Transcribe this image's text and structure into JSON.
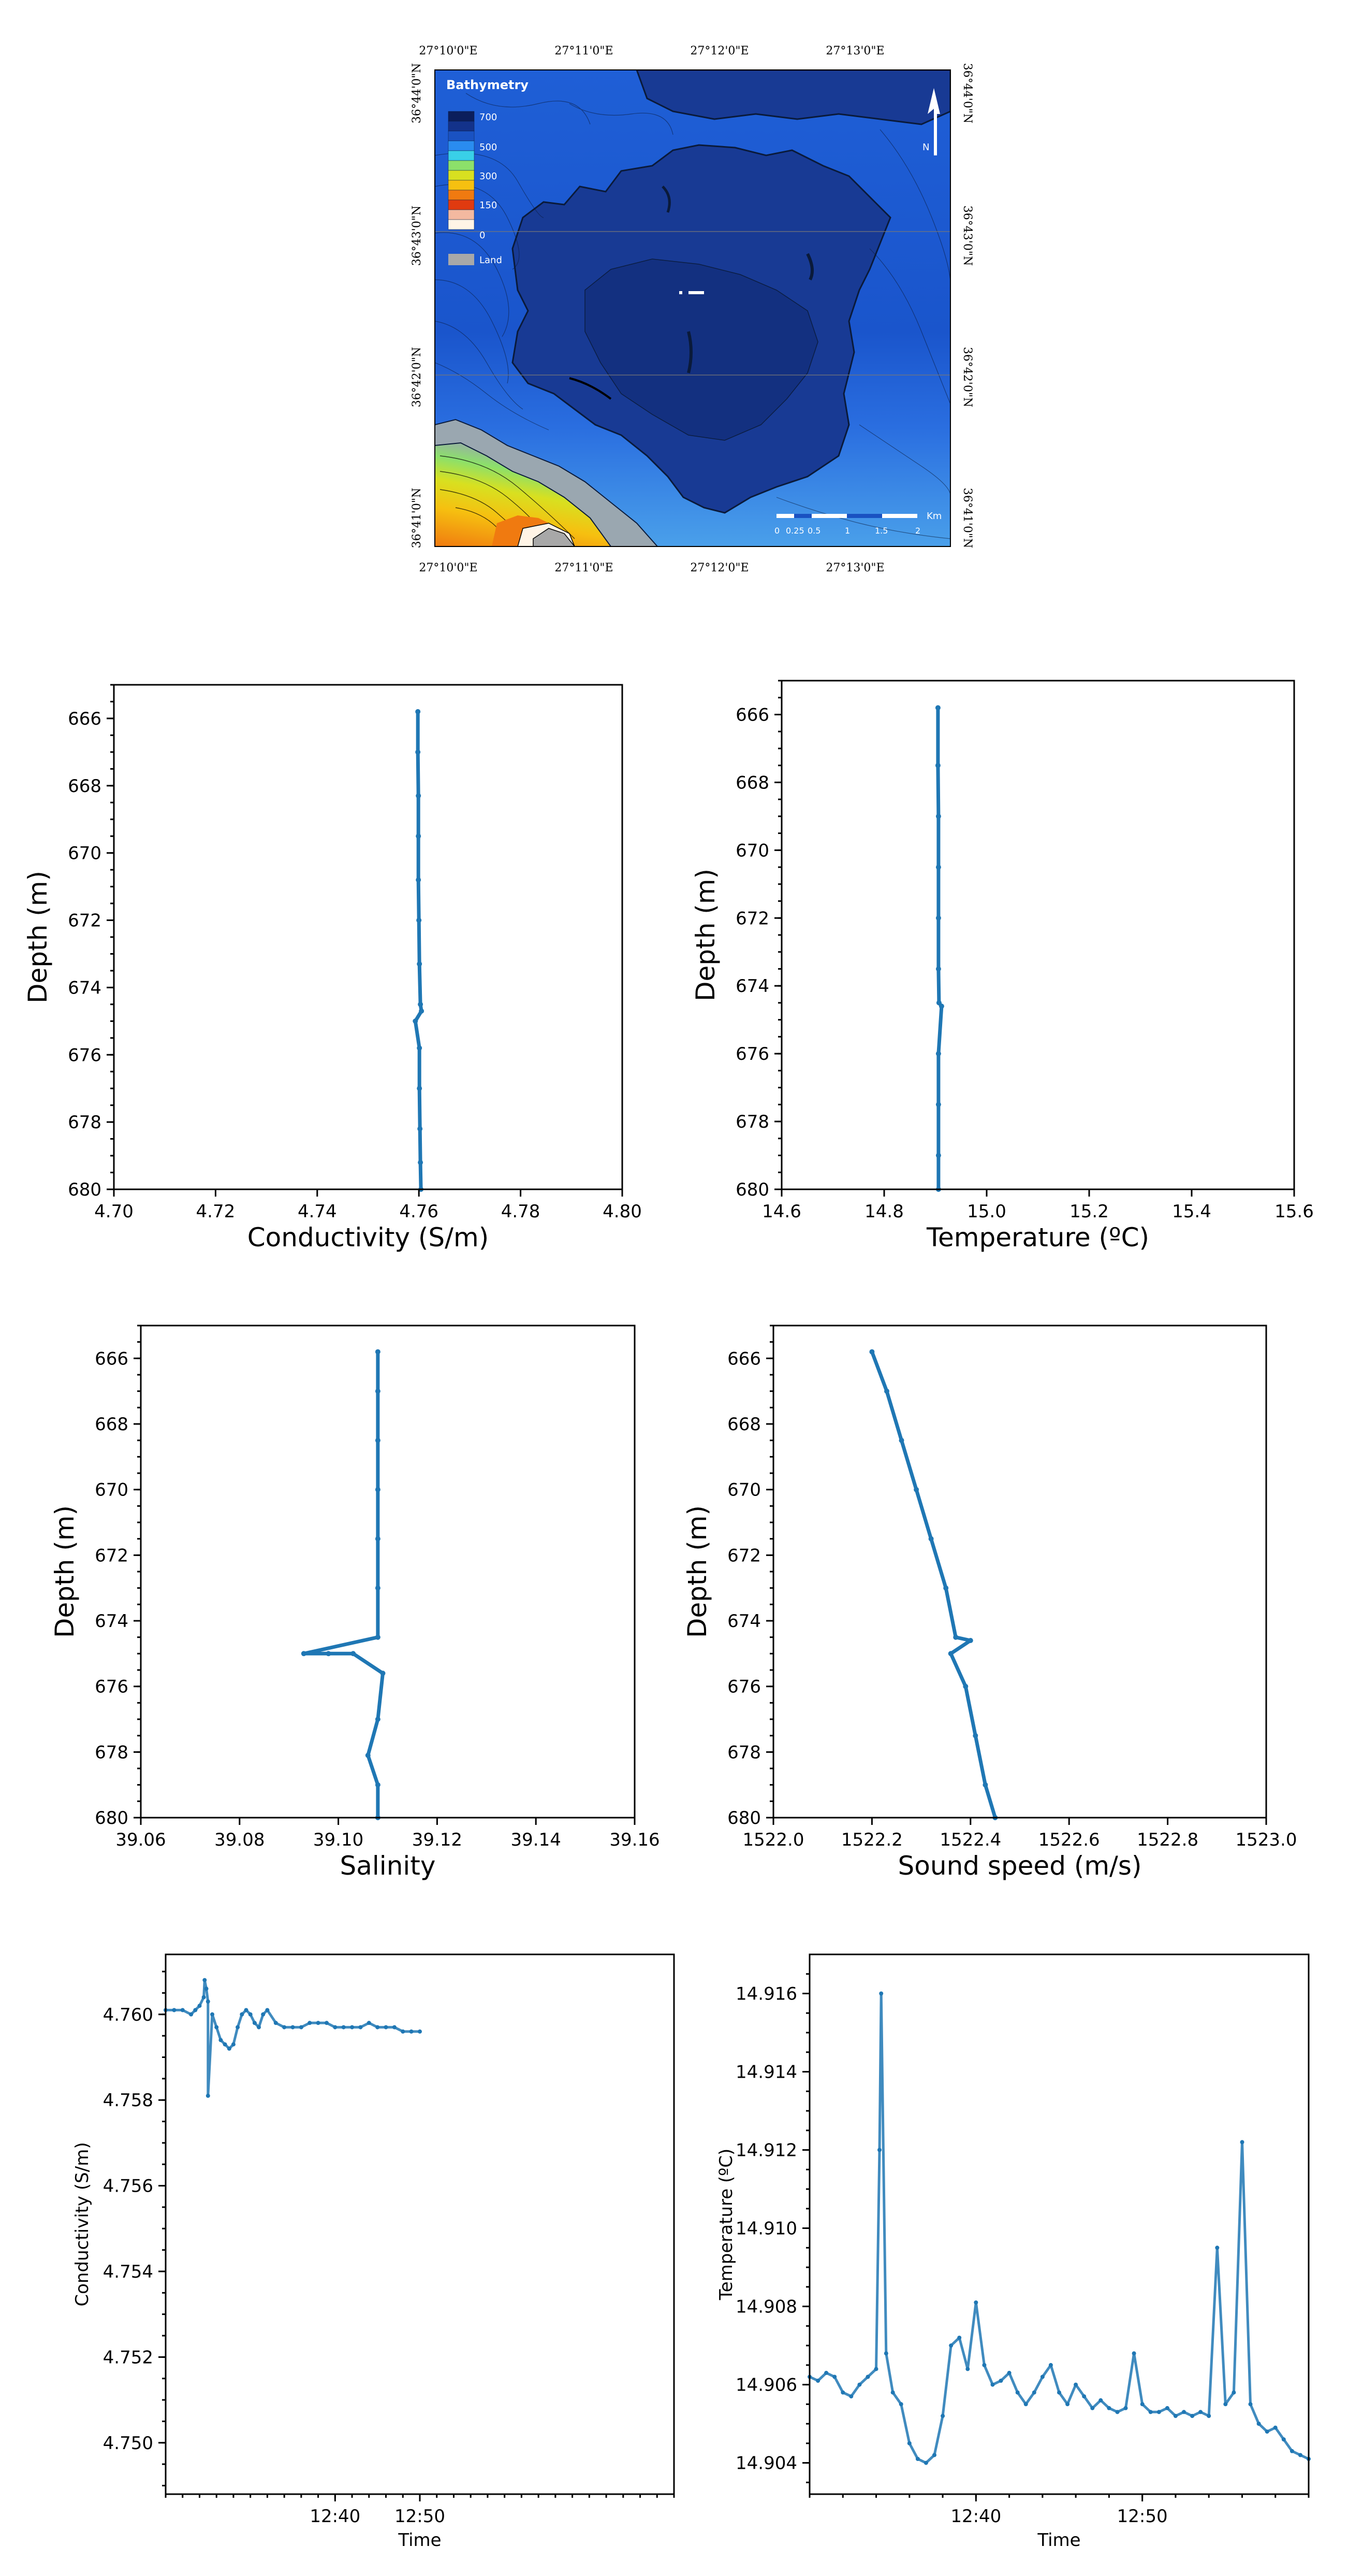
{
  "map": {
    "legend_title": "Bathymetry",
    "legend_values": [
      "700",
      "500",
      "300",
      "150",
      "0"
    ],
    "legend_land": "Land",
    "legend_colors": [
      "#0b1e5c",
      "#13328a",
      "#1a52c2",
      "#2a8cf0",
      "#39d0e8",
      "#8ce06a",
      "#d8e020",
      "#f6c010",
      "#f07a10",
      "#e03a10",
      "#f3b9a0",
      "#fff4e6"
    ],
    "lon_labels": [
      "27°10'0\"E",
      "27°11'0\"E",
      "27°12'0\"E",
      "27°13'0\"E"
    ],
    "lat_labels": [
      "36°44'0\"N",
      "36°43'0\"N",
      "36°42'0\"N",
      "36°41'0\"N"
    ],
    "north_label": "N",
    "scale_unit": "Km",
    "scale_labels": [
      "0",
      "0.25",
      "0.5",
      "1",
      "1.5",
      "2"
    ]
  },
  "chart_data": [
    {
      "id": "conductivity-profile",
      "type": "scatter",
      "xlabel": "Conductivity (S/m)",
      "ylabel": "Depth (m)",
      "xlim": [
        4.7,
        4.8
      ],
      "ylim": [
        680,
        665
      ],
      "xticks": [
        "4.70",
        "4.72",
        "4.74",
        "4.76",
        "4.78",
        "4.80"
      ],
      "yticks": [
        "666",
        "668",
        "670",
        "672",
        "674",
        "676",
        "678",
        "680"
      ],
      "points": [
        [
          4.7598,
          665.8
        ],
        [
          4.7598,
          667.0
        ],
        [
          4.7599,
          668.3
        ],
        [
          4.7599,
          669.5
        ],
        [
          4.7599,
          670.8
        ],
        [
          4.76,
          672.0
        ],
        [
          4.7601,
          673.3
        ],
        [
          4.7603,
          674.5
        ],
        [
          4.7593,
          675.0
        ],
        [
          4.7605,
          674.7
        ],
        [
          4.7601,
          675.8
        ],
        [
          4.7601,
          677.0
        ],
        [
          4.7602,
          678.2
        ],
        [
          4.7603,
          679.2
        ],
        [
          4.7604,
          680.0
        ]
      ]
    },
    {
      "id": "temperature-profile",
      "type": "scatter",
      "xlabel": "Temperature (ºC)",
      "ylabel": "Depth (m)",
      "xlim": [
        14.6,
        15.6
      ],
      "ylim": [
        680,
        665
      ],
      "xticks": [
        "14.6",
        "14.8",
        "15.0",
        "15.2",
        "15.4",
        "15.6"
      ],
      "yticks": [
        "666",
        "668",
        "670",
        "672",
        "674",
        "676",
        "678",
        "680"
      ],
      "points": [
        [
          14.905,
          665.8
        ],
        [
          14.905,
          667.5
        ],
        [
          14.906,
          669.0
        ],
        [
          14.906,
          670.5
        ],
        [
          14.906,
          672.0
        ],
        [
          14.906,
          673.5
        ],
        [
          14.907,
          674.5
        ],
        [
          14.912,
          674.6
        ],
        [
          14.906,
          676.0
        ],
        [
          14.906,
          677.5
        ],
        [
          14.906,
          679.0
        ],
        [
          14.906,
          680.0
        ]
      ]
    },
    {
      "id": "salinity-profile",
      "type": "scatter",
      "xlabel": "Salinity",
      "ylabel": "Depth (m)",
      "xlim": [
        39.06,
        39.16
      ],
      "ylim": [
        680,
        665
      ],
      "xticks": [
        "39.06",
        "39.08",
        "39.10",
        "39.12",
        "39.14",
        "39.16"
      ],
      "yticks": [
        "666",
        "668",
        "670",
        "672",
        "674",
        "676",
        "678",
        "680"
      ],
      "points": [
        [
          39.108,
          665.8
        ],
        [
          39.108,
          667.0
        ],
        [
          39.108,
          668.5
        ],
        [
          39.108,
          670.0
        ],
        [
          39.108,
          671.5
        ],
        [
          39.108,
          673.0
        ],
        [
          39.108,
          674.5
        ],
        [
          39.093,
          675.0
        ],
        [
          39.098,
          675.0
        ],
        [
          39.103,
          675.0
        ],
        [
          39.109,
          675.6
        ],
        [
          39.108,
          677.0
        ],
        [
          39.106,
          678.1
        ],
        [
          39.108,
          679.0
        ],
        [
          39.108,
          680.0
        ]
      ]
    },
    {
      "id": "sound-speed-profile",
      "type": "scatter",
      "xlabel": "Sound speed (m/s)",
      "ylabel": "Depth (m)",
      "xlim": [
        1522.0,
        1523.0
      ],
      "ylim": [
        680,
        665
      ],
      "xticks": [
        "1522.0",
        "1522.2",
        "1522.4",
        "1522.6",
        "1522.8",
        "1523.0"
      ],
      "yticks": [
        "666",
        "668",
        "670",
        "672",
        "674",
        "676",
        "678",
        "680"
      ],
      "points": [
        [
          1522.2,
          665.8
        ],
        [
          1522.23,
          667.0
        ],
        [
          1522.26,
          668.5
        ],
        [
          1522.29,
          670.0
        ],
        [
          1522.32,
          671.5
        ],
        [
          1522.35,
          673.0
        ],
        [
          1522.37,
          674.5
        ],
        [
          1522.4,
          674.6
        ],
        [
          1522.36,
          675.0
        ],
        [
          1522.39,
          676.0
        ],
        [
          1522.41,
          677.5
        ],
        [
          1522.43,
          679.0
        ],
        [
          1522.45,
          680.0
        ]
      ]
    },
    {
      "id": "conductivity-time",
      "type": "scatter",
      "xlabel": "Time",
      "ylabel": "Conductivity (S/m)",
      "xlim": [
        0,
        60
      ],
      "ylim": [
        4.7488,
        4.7614
      ],
      "xticks": [
        "12:40",
        "12:50"
      ],
      "xtick_values": [
        20,
        30
      ],
      "yticks": [
        "4.750",
        "4.752",
        "4.754",
        "4.756",
        "4.758",
        "4.760"
      ],
      "points": [
        [
          0,
          4.7601
        ],
        [
          1,
          4.7601
        ],
        [
          2,
          4.7601
        ],
        [
          3,
          4.76
        ],
        [
          3.5,
          4.7601
        ],
        [
          4,
          4.7602
        ],
        [
          4.5,
          4.7604
        ],
        [
          5,
          4.7603
        ],
        [
          5.5,
          4.76
        ],
        [
          6,
          4.7597
        ],
        [
          6.5,
          4.7594
        ],
        [
          7,
          4.7593
        ],
        [
          7.5,
          4.7592
        ],
        [
          8,
          4.7593
        ],
        [
          8.5,
          4.7597
        ],
        [
          9,
          4.76
        ],
        [
          9.5,
          4.7601
        ],
        [
          10,
          4.76
        ],
        [
          10.5,
          4.7598
        ],
        [
          11,
          4.7597
        ],
        [
          11.5,
          4.76
        ],
        [
          12,
          4.7601
        ],
        [
          13,
          4.7598
        ],
        [
          14,
          4.7597
        ],
        [
          15,
          4.7597
        ],
        [
          16,
          4.7597
        ],
        [
          17,
          4.7598
        ],
        [
          18,
          4.7598
        ],
        [
          19,
          4.7598
        ],
        [
          20,
          4.7597
        ],
        [
          21,
          4.7597
        ],
        [
          22,
          4.7597
        ],
        [
          23,
          4.7597
        ],
        [
          24,
          4.7598
        ],
        [
          25,
          4.7597
        ],
        [
          26,
          4.7597
        ],
        [
          27,
          4.7597
        ],
        [
          28,
          4.7596
        ],
        [
          29,
          4.7596
        ],
        [
          30,
          4.7596
        ],
        [
          4.6,
          4.7608
        ],
        [
          4.8,
          4.7606
        ],
        [
          5.0,
          4.7581
        ]
      ]
    },
    {
      "id": "temperature-time",
      "type": "scatter",
      "xlabel": "Time",
      "ylabel": "Temperature (ºC)",
      "xlim": [
        0,
        30
      ],
      "ylim": [
        14.9032,
        14.917
      ],
      "xticks": [
        "12:40",
        "12:50"
      ],
      "xtick_values": [
        10,
        20
      ],
      "yticks": [
        "14.904",
        "14.906",
        "14.908",
        "14.910",
        "14.912",
        "14.914",
        "14.916"
      ],
      "points": [
        [
          0,
          14.9062
        ],
        [
          0.5,
          14.9061
        ],
        [
          1,
          14.9063
        ],
        [
          1.5,
          14.9062
        ],
        [
          2,
          14.9058
        ],
        [
          2.5,
          14.9057
        ],
        [
          3,
          14.906
        ],
        [
          3.5,
          14.9062
        ],
        [
          4,
          14.9064
        ],
        [
          4.2,
          14.912
        ],
        [
          4.3,
          14.916
        ],
        [
          4.6,
          14.9068
        ],
        [
          5,
          14.9058
        ],
        [
          5.5,
          14.9055
        ],
        [
          6,
          14.9045
        ],
        [
          6.5,
          14.9041
        ],
        [
          7,
          14.904
        ],
        [
          7.5,
          14.9042
        ],
        [
          8,
          14.9052
        ],
        [
          8.5,
          14.907
        ],
        [
          9,
          14.9072
        ],
        [
          9.5,
          14.9064
        ],
        [
          10,
          14.9081
        ],
        [
          10.5,
          14.9065
        ],
        [
          11,
          14.906
        ],
        [
          11.5,
          14.9061
        ],
        [
          12,
          14.9063
        ],
        [
          12.5,
          14.9058
        ],
        [
          13,
          14.9055
        ],
        [
          13.5,
          14.9058
        ],
        [
          14,
          14.9062
        ],
        [
          14.5,
          14.9065
        ],
        [
          15,
          14.9058
        ],
        [
          15.5,
          14.9055
        ],
        [
          16,
          14.906
        ],
        [
          16.5,
          14.9057
        ],
        [
          17,
          14.9054
        ],
        [
          17.5,
          14.9056
        ],
        [
          18,
          14.9054
        ],
        [
          18.5,
          14.9053
        ],
        [
          19,
          14.9054
        ],
        [
          19.5,
          14.9068
        ],
        [
          20,
          14.9055
        ],
        [
          20.5,
          14.9053
        ],
        [
          21,
          14.9053
        ],
        [
          21.5,
          14.9054
        ],
        [
          22,
          14.9052
        ],
        [
          22.5,
          14.9053
        ],
        [
          23,
          14.9052
        ],
        [
          23.5,
          14.9053
        ],
        [
          24,
          14.9052
        ],
        [
          24.5,
          14.9095
        ],
        [
          25,
          14.9055
        ],
        [
          25.5,
          14.9058
        ],
        [
          26,
          14.9122
        ],
        [
          26.5,
          14.9055
        ],
        [
          27,
          14.905
        ],
        [
          27.5,
          14.9048
        ],
        [
          28,
          14.9049
        ],
        [
          28.5,
          14.9046
        ],
        [
          29,
          14.9043
        ],
        [
          29.5,
          14.9042
        ],
        [
          30,
          14.9041
        ]
      ]
    }
  ]
}
